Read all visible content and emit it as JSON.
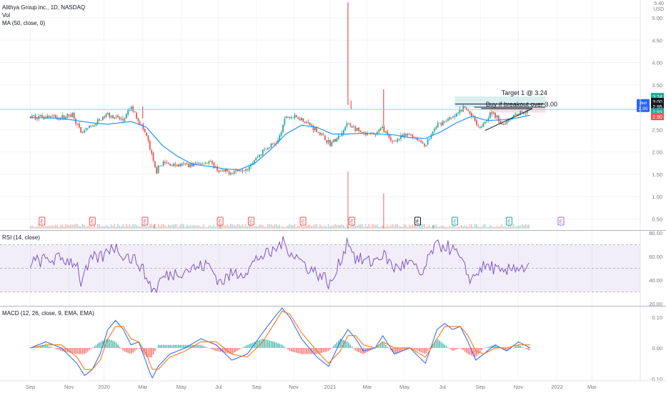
{
  "header": {
    "symbol_line": "Alithya Group inc., 1D, NASDAQ",
    "vol_label": "Vol",
    "ma_label": "MA (50, close, 0)",
    "currency": "USD"
  },
  "price_axis": {
    "ticks": [
      "5.00",
      "4.50",
      "4.00",
      "3.50",
      "3.00",
      "2.50",
      "2.00",
      "1.50",
      "1.00",
      "0.50"
    ],
    "top_label": "5.40",
    "badges": [
      {
        "text": "3.24",
        "color": "#26a69a"
      },
      {
        "text": "3.00",
        "color": "#131722"
      },
      {
        "text": "2.95",
        "color": "#131722"
      },
      {
        "text": "2.93",
        "color": "#26a69a"
      },
      {
        "text": "2.90",
        "color": "#ef5350"
      }
    ],
    "alert_badge": "Jlott",
    "alert_price": "2.95",
    "alert_color": "#2962ff"
  },
  "rsi": {
    "label": "RSI (14, close)",
    "ticks": [
      "80.00",
      "60.00",
      "40.00",
      "20.00"
    ],
    "line_color": "#7e57c2"
  },
  "macd": {
    "label": "MACD (12, 26, close, 9, EMA, EMA)",
    "ticks": [
      "0.10",
      "0.00",
      "-0.10"
    ],
    "macd_color": "#2962ff",
    "signal_color": "#ff6d00"
  },
  "time_axis": {
    "labels": [
      "Sep",
      "Nov",
      "2020",
      "Mar",
      "May",
      "Jul",
      "Sep",
      "Nov",
      "2021",
      "Mar",
      "May",
      "Jul",
      "Sep",
      "Nov",
      "2022",
      "Mar"
    ]
  },
  "annotations": {
    "target": "Target 1 @ 3.24",
    "buy": "Buy if breakout over 3.00"
  },
  "earnings_markers": [
    {
      "text": "E",
      "color": "#ef5350"
    },
    {
      "text": "E",
      "color": "#ef5350"
    },
    {
      "text": "E",
      "color": "#ef5350"
    },
    {
      "text": "E",
      "color": "#ef5350"
    },
    {
      "text": "E",
      "color": "#ef5350"
    },
    {
      "text": "E",
      "color": "#ef5350"
    },
    {
      "text": "E",
      "color": "#ef5350"
    },
    {
      "text": "E",
      "color": "#131722"
    },
    {
      "text": "E",
      "color": "#26a69a"
    },
    {
      "text": "E",
      "color": "#26a69a"
    },
    {
      "text": "E",
      "color": "#9c6ede"
    }
  ],
  "colors": {
    "up": "#26a69a",
    "down": "#ef5350",
    "ma": "#2196f3",
    "hline": "#90caf9"
  },
  "chart_data": [
    {
      "type": "candlestick",
      "title": "Alithya Group inc., 1D, NASDAQ",
      "ylim": [
        0.25,
        5.4
      ],
      "x_labels": [
        "Sep",
        "Nov",
        "2020",
        "Mar",
        "May",
        "Jul",
        "Sep",
        "Nov",
        "2021",
        "Mar",
        "May",
        "Jul",
        "Sep",
        "Nov",
        "2022",
        "Mar"
      ],
      "x_label_units": [
        0,
        5.0,
        9.5,
        14.5,
        19.5,
        24.3,
        29.2,
        34.0,
        38.7,
        43.5,
        48.3,
        53.2,
        58.1,
        63.0,
        68.0,
        72.5
      ],
      "last_x_unit": 64.5,
      "price_path": [
        [
          0,
          2.78
        ],
        [
          2,
          2.8
        ],
        [
          4,
          2.76
        ],
        [
          5.5,
          2.85
        ],
        [
          6.5,
          2.4
        ],
        [
          8,
          2.58
        ],
        [
          10,
          2.85
        ],
        [
          12,
          2.7
        ],
        [
          13,
          3.0
        ],
        [
          14,
          2.7
        ],
        [
          15,
          2.35
        ],
        [
          16.2,
          1.55
        ],
        [
          17,
          1.75
        ],
        [
          19,
          1.7
        ],
        [
          21,
          1.72
        ],
        [
          23,
          1.78
        ],
        [
          24.5,
          1.55
        ],
        [
          26,
          1.55
        ],
        [
          28,
          1.65
        ],
        [
          30,
          2.02
        ],
        [
          32,
          2.25
        ],
        [
          33,
          2.8
        ],
        [
          35,
          2.75
        ],
        [
          37,
          2.48
        ],
        [
          38.7,
          2.18
        ],
        [
          40,
          2.35
        ],
        [
          41,
          2.65
        ],
        [
          42,
          2.5
        ],
        [
          43,
          2.38
        ],
        [
          44.5,
          2.4
        ],
        [
          45.5,
          2.55
        ],
        [
          46.5,
          2.22
        ],
        [
          49,
          2.4
        ],
        [
          51,
          2.15
        ],
        [
          52.5,
          2.6
        ],
        [
          53.5,
          2.7
        ],
        [
          54.5,
          2.75
        ],
        [
          56,
          3.0
        ],
        [
          57,
          2.82
        ],
        [
          58,
          2.55
        ],
        [
          59.5,
          2.88
        ],
        [
          61,
          2.62
        ],
        [
          62.5,
          2.85
        ],
        [
          64.5,
          2.93
        ]
      ],
      "ma50_path": [
        [
          0,
          2.77
        ],
        [
          4,
          2.75
        ],
        [
          8,
          2.65
        ],
        [
          10,
          2.62
        ],
        [
          13,
          2.68
        ],
        [
          15,
          2.55
        ],
        [
          17,
          2.15
        ],
        [
          19,
          1.9
        ],
        [
          21,
          1.72
        ],
        [
          23,
          1.68
        ],
        [
          25,
          1.62
        ],
        [
          27,
          1.6
        ],
        [
          29,
          1.75
        ],
        [
          31,
          2.05
        ],
        [
          33,
          2.4
        ],
        [
          35,
          2.6
        ],
        [
          37,
          2.55
        ],
        [
          39,
          2.4
        ],
        [
          41,
          2.4
        ],
        [
          43,
          2.42
        ],
        [
          45,
          2.4
        ],
        [
          47,
          2.38
        ],
        [
          49,
          2.32
        ],
        [
          51,
          2.3
        ],
        [
          53,
          2.45
        ],
        [
          55,
          2.65
        ],
        [
          57,
          2.8
        ],
        [
          59,
          2.7
        ],
        [
          61,
          2.72
        ],
        [
          62.5,
          2.75
        ],
        [
          64.5,
          2.82
        ]
      ],
      "volume_spikes": [
        {
          "x": 41.0,
          "height": 1.0
        },
        {
          "x": 45.6,
          "height": 0.62
        },
        {
          "x": 24.5,
          "height": 0.12
        },
        {
          "x": 16.0,
          "height": 0.08
        },
        {
          "x": 52.0,
          "height": 0.06
        }
      ],
      "horizontal_line": 2.95,
      "target_level": 3.24,
      "breakout_level": 3.0,
      "triangle": {
        "apex_x": 64.8,
        "top": 2.97,
        "start_x": 58.7,
        "bottom_start": 2.48
      },
      "earnings_x": [
        1.5,
        8.0,
        14.8,
        24.5,
        28.5,
        35.2,
        41.5,
        50.0,
        54.8,
        61.8,
        68.5
      ]
    },
    {
      "type": "line",
      "title": "RSI (14, close)",
      "ylim": [
        20,
        80
      ],
      "band": [
        30,
        70
      ],
      "mid": 50,
      "y": [
        [
          0,
          55
        ],
        [
          2,
          57
        ],
        [
          4,
          58
        ],
        [
          6,
          55
        ],
        [
          6.5,
          38
        ],
        [
          8,
          58
        ],
        [
          9.5,
          60
        ],
        [
          10.5,
          70
        ],
        [
          12,
          62
        ],
        [
          14,
          55
        ],
        [
          15,
          42
        ],
        [
          16,
          30
        ],
        [
          17,
          42
        ],
        [
          19,
          47
        ],
        [
          21,
          50
        ],
        [
          23,
          53
        ],
        [
          24.5,
          38
        ],
        [
          26,
          45
        ],
        [
          28,
          48
        ],
        [
          29.5,
          60
        ],
        [
          31,
          62
        ],
        [
          32.5,
          72
        ],
        [
          34,
          62
        ],
        [
          36,
          50
        ],
        [
          38,
          42
        ],
        [
          38.8,
          35
        ],
        [
          40,
          56
        ],
        [
          41,
          75
        ],
        [
          42,
          58
        ],
        [
          44,
          55
        ],
        [
          45.5,
          62
        ],
        [
          47,
          50
        ],
        [
          49,
          55
        ],
        [
          50.5,
          43
        ],
        [
          52,
          67
        ],
        [
          53.5,
          70
        ],
        [
          55,
          63
        ],
        [
          56,
          50
        ],
        [
          57,
          40
        ],
        [
          58,
          50
        ],
        [
          59.5,
          52
        ],
        [
          61,
          44
        ],
        [
          62.5,
          52
        ],
        [
          64,
          50
        ],
        [
          64.5,
          58
        ]
      ]
    },
    {
      "type": "line",
      "title": "MACD (12, 26, close, 9, EMA, EMA)",
      "ylim": [
        -0.105,
        0.135
      ],
      "series": [
        {
          "x": [
            0,
            2,
            4,
            6,
            7,
            8,
            9,
            10,
            11,
            12,
            13,
            14,
            15,
            15.7,
            16.5,
            18,
            20,
            22,
            24,
            26,
            28,
            30,
            31.5,
            32.5,
            33.5,
            35,
            37,
            38.5,
            40,
            41,
            42,
            43,
            44.5,
            45.5,
            47,
            49,
            51,
            52.5,
            53.5,
            54.5,
            55.5,
            56.5,
            57.5,
            58.5,
            60,
            61.5,
            63,
            64.5
          ],
          "values": [
            0.0,
            0.02,
            0.0,
            -0.05,
            -0.09,
            -0.07,
            -0.02,
            0.06,
            0.09,
            0.06,
            0.01,
            0.02,
            -0.05,
            -0.1,
            -0.06,
            -0.02,
            0.0,
            0.03,
            0.01,
            -0.04,
            -0.02,
            0.05,
            0.1,
            0.13,
            0.1,
            0.03,
            -0.03,
            -0.06,
            0.02,
            0.06,
            0.03,
            -0.01,
            0.0,
            0.04,
            -0.02,
            0.0,
            -0.05,
            0.06,
            0.08,
            0.06,
            0.07,
            0.02,
            -0.04,
            -0.02,
            0.01,
            -0.01,
            0.02,
            0.0
          ]
        },
        {
          "x": [
            0,
            2,
            4,
            6,
            7,
            8,
            9,
            10,
            11,
            12,
            13,
            14,
            15,
            15.7,
            16.5,
            18,
            20,
            22,
            24,
            26,
            28,
            30,
            31.5,
            32.5,
            33.5,
            35,
            37,
            38.5,
            40,
            41,
            42,
            43,
            44.5,
            45.5,
            47,
            49,
            51,
            52.5,
            53.5,
            54.5,
            55.5,
            56.5,
            57.5,
            58.5,
            60,
            61.5,
            63,
            64.5
          ],
          "values": [
            0.0,
            0.01,
            0.01,
            -0.03,
            -0.07,
            -0.07,
            -0.04,
            0.03,
            0.07,
            0.07,
            0.03,
            0.02,
            -0.02,
            -0.07,
            -0.07,
            -0.03,
            -0.01,
            0.02,
            0.02,
            -0.02,
            -0.03,
            0.02,
            0.08,
            0.12,
            0.11,
            0.05,
            -0.01,
            -0.05,
            -0.01,
            0.04,
            0.04,
            0.01,
            0.0,
            0.02,
            0.0,
            0.0,
            -0.03,
            0.03,
            0.07,
            0.07,
            0.07,
            0.04,
            -0.01,
            -0.02,
            0.0,
            0.0,
            0.01,
            0.01
          ]
        }
      ]
    }
  ]
}
